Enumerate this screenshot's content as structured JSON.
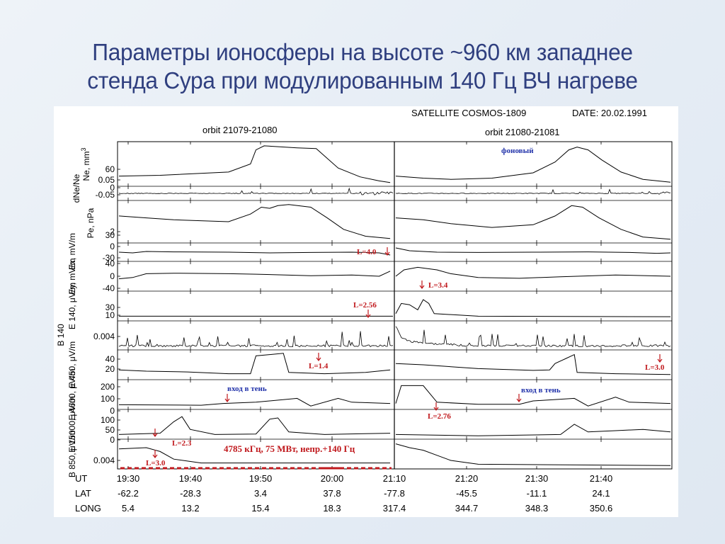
{
  "slide": {
    "title_line1": "Параметры ионосферы на высоте ~960 км западнее",
    "title_line2": "стенда Сура при модулированным 140 Гц ВЧ нагреве"
  },
  "chart_data": {
    "type": "line",
    "header": {
      "satellite": "SATELLITE  COSMOS-1809",
      "date": "DATE: 20.02.1991",
      "orbit1": "orbit  21079-21080",
      "orbit2": "orbit  21080-21081"
    },
    "panels": [
      {
        "label": "Ne, mm",
        "label_sup": "3",
        "ticks": [
          "60"
        ],
        "series": "Ne",
        "left": [
          [
            0,
            0.2
          ],
          [
            0.15,
            0.22
          ],
          [
            0.4,
            0.3
          ],
          [
            0.48,
            0.5
          ],
          [
            0.5,
            0.85
          ],
          [
            0.53,
            0.95
          ],
          [
            0.65,
            0.9
          ],
          [
            0.72,
            0.88
          ],
          [
            0.75,
            0.7
          ],
          [
            0.8,
            0.4
          ],
          [
            0.88,
            0.18
          ],
          [
            0.95,
            0.08
          ],
          [
            0.99,
            0.04
          ]
        ],
        "right": [
          [
            0,
            0.2
          ],
          [
            0.1,
            0.15
          ],
          [
            0.2,
            0.12
          ],
          [
            0.35,
            0.15
          ],
          [
            0.5,
            0.28
          ],
          [
            0.58,
            0.55
          ],
          [
            0.63,
            0.85
          ],
          [
            0.66,
            0.92
          ],
          [
            0.7,
            0.85
          ],
          [
            0.75,
            0.6
          ],
          [
            0.82,
            0.3
          ],
          [
            0.9,
            0.12
          ],
          [
            1,
            0.05
          ]
        ]
      },
      {
        "label": "dNe/Ne",
        "ticks": [
          "0.05",
          "0",
          "-0.05"
        ],
        "series": "noise",
        "left": [
          [
            0,
            0.5
          ],
          [
            1,
            0.5
          ]
        ],
        "right": [
          [
            0,
            0.5
          ],
          [
            1,
            0.5
          ]
        ]
      },
      {
        "label": "Pe, nPa",
        "ticks": [
          "2"
        ],
        "series": "Pe",
        "left": [
          [
            0,
            0.65
          ],
          [
            0.1,
            0.6
          ],
          [
            0.2,
            0.55
          ],
          [
            0.4,
            0.5
          ],
          [
            0.48,
            0.7
          ],
          [
            0.52,
            0.88
          ],
          [
            0.55,
            0.85
          ],
          [
            0.58,
            0.92
          ],
          [
            0.62,
            0.95
          ],
          [
            0.7,
            0.88
          ],
          [
            0.76,
            0.6
          ],
          [
            0.82,
            0.3
          ],
          [
            0.9,
            0.12
          ],
          [
            0.99,
            0.06
          ]
        ],
        "right": [
          [
            0,
            0.6
          ],
          [
            0.1,
            0.55
          ],
          [
            0.2,
            0.45
          ],
          [
            0.35,
            0.35
          ],
          [
            0.5,
            0.42
          ],
          [
            0.58,
            0.65
          ],
          [
            0.64,
            0.92
          ],
          [
            0.68,
            0.88
          ],
          [
            0.74,
            0.6
          ],
          [
            0.82,
            0.3
          ],
          [
            0.9,
            0.1
          ],
          [
            1,
            0.04
          ]
        ]
      },
      {
        "label": "Ex, mV/m",
        "ticks": [
          "30",
          "0",
          "-30"
        ],
        "series": "Ex",
        "left": [
          [
            0,
            0.5
          ],
          [
            0.05,
            0.45
          ],
          [
            0.1,
            0.55
          ],
          [
            0.2,
            0.52
          ],
          [
            0.4,
            0.5
          ],
          [
            0.55,
            0.45
          ],
          [
            0.7,
            0.48
          ],
          [
            0.85,
            0.5
          ],
          [
            0.95,
            0.45
          ],
          [
            0.99,
            0.3
          ]
        ],
        "right": [
          [
            0,
            0.8
          ],
          [
            0.05,
            0.6
          ],
          [
            0.15,
            0.5
          ],
          [
            0.3,
            0.48
          ],
          [
            0.5,
            0.5
          ],
          [
            0.7,
            0.52
          ],
          [
            0.85,
            0.48
          ],
          [
            0.95,
            0.42
          ],
          [
            1,
            0.45
          ]
        ]
      },
      {
        "label": "Ey, mV/m",
        "ticks": [
          "40",
          "0",
          "-40"
        ],
        "series": "Ey",
        "left": [
          [
            0,
            0.4
          ],
          [
            0.05,
            0.45
          ],
          [
            0.1,
            0.6
          ],
          [
            0.2,
            0.62
          ],
          [
            0.4,
            0.6
          ],
          [
            0.5,
            0.58
          ],
          [
            0.7,
            0.52
          ],
          [
            0.85,
            0.55
          ],
          [
            0.95,
            0.5
          ],
          [
            0.99,
            0.7
          ]
        ],
        "right": [
          [
            0,
            0.5
          ],
          [
            0.03,
            0.75
          ],
          [
            0.08,
            0.85
          ],
          [
            0.15,
            0.75
          ],
          [
            0.2,
            0.6
          ],
          [
            0.3,
            0.45
          ],
          [
            0.45,
            0.42
          ],
          [
            0.6,
            0.48
          ],
          [
            0.8,
            0.55
          ],
          [
            1,
            0.5
          ]
        ]
      },
      {
        "label": "E 140, μV/m",
        "ticks": [
          "30",
          "10"
        ],
        "series": "E140",
        "left": [
          [
            0,
            0.1
          ],
          [
            1,
            0.1
          ]
        ],
        "right": [
          [
            0,
            0.2
          ],
          [
            0.02,
            0.6
          ],
          [
            0.05,
            0.55
          ],
          [
            0.08,
            0.35
          ],
          [
            0.1,
            0.75
          ],
          [
            0.12,
            0.6
          ],
          [
            0.14,
            0.2
          ],
          [
            0.3,
            0.1
          ],
          [
            1,
            0.08
          ]
        ]
      },
      {
        "label": "B 140",
        "ticks": [
          "0.004"
        ],
        "series": "B140",
        "left": [
          [
            0,
            0.08
          ],
          [
            1,
            0.08
          ]
        ],
        "right": [
          [
            0,
            0.9
          ],
          [
            0.02,
            0.4
          ],
          [
            0.05,
            0.25
          ],
          [
            0.15,
            0.15
          ],
          [
            0.3,
            0.08
          ],
          [
            1,
            0.08
          ]
        ]
      },
      {
        "label": "E 450, μV/m",
        "ticks": [
          "40",
          "20"
        ],
        "series": "E450",
        "left": [
          [
            0,
            0.3
          ],
          [
            0.1,
            0.25
          ],
          [
            0.25,
            0.22
          ],
          [
            0.4,
            0.15
          ],
          [
            0.48,
            0.15
          ],
          [
            0.5,
            0.85
          ],
          [
            0.6,
            0.95
          ],
          [
            0.62,
            0.2
          ],
          [
            0.75,
            0.15
          ],
          [
            0.9,
            0.2
          ],
          [
            0.99,
            0.3
          ]
        ],
        "right": [
          [
            0,
            0.55
          ],
          [
            0.1,
            0.5
          ],
          [
            0.3,
            0.35
          ],
          [
            0.5,
            0.28
          ],
          [
            0.56,
            0.3
          ],
          [
            0.58,
            0.55
          ],
          [
            0.62,
            0.75
          ],
          [
            0.65,
            0.9
          ],
          [
            0.66,
            0.2
          ],
          [
            0.8,
            0.15
          ],
          [
            1,
            0.12
          ]
        ]
      },
      {
        "label": "E 4600, μV/m",
        "ticks": [
          "200",
          "100",
          "0"
        ],
        "series": "E4600",
        "left": [
          [
            0,
            0.1
          ],
          [
            0.3,
            0.08
          ],
          [
            0.38,
            0.15
          ],
          [
            0.5,
            0.2
          ],
          [
            0.65,
            0.35
          ],
          [
            0.7,
            0.05
          ],
          [
            0.8,
            0.35
          ],
          [
            0.85,
            0.2
          ],
          [
            0.99,
            0.15
          ]
        ],
        "right": [
          [
            0,
            0.15
          ],
          [
            0.02,
            0.85
          ],
          [
            0.1,
            0.85
          ],
          [
            0.15,
            0.2
          ],
          [
            0.3,
            0.12
          ],
          [
            0.45,
            0.12
          ],
          [
            0.5,
            0.25
          ],
          [
            0.65,
            0.35
          ],
          [
            0.7,
            0.05
          ],
          [
            0.8,
            0.4
          ],
          [
            0.85,
            0.2
          ],
          [
            1,
            0.15
          ]
        ]
      },
      {
        "label": "E 15000, μV/m",
        "ticks": [
          "100",
          "50",
          "0"
        ],
        "series": "E15000",
        "left": [
          [
            0,
            0.1
          ],
          [
            0.15,
            0.15
          ],
          [
            0.2,
            0.6
          ],
          [
            0.23,
            0.8
          ],
          [
            0.26,
            0.3
          ],
          [
            0.35,
            0.1
          ],
          [
            0.5,
            0.12
          ],
          [
            0.55,
            0.7
          ],
          [
            0.58,
            0.75
          ],
          [
            0.62,
            0.2
          ],
          [
            0.75,
            0.1
          ],
          [
            0.99,
            0.15
          ]
        ],
        "right": [
          [
            0,
            0.1
          ],
          [
            0.3,
            0.05
          ],
          [
            0.6,
            0.1
          ],
          [
            0.65,
            0.5
          ],
          [
            0.7,
            0.2
          ],
          [
            0.8,
            0.25
          ],
          [
            0.9,
            0.3
          ],
          [
            1,
            0.2
          ]
        ]
      },
      {
        "label": "B 850, μV/m",
        "ticks": [
          "0.004"
        ],
        "series": "B850",
        "left": [
          [
            0,
            0.7
          ],
          [
            0.1,
            0.75
          ],
          [
            0.15,
            0.6
          ],
          [
            0.2,
            0.3
          ],
          [
            0.3,
            0.15
          ],
          [
            0.99,
            0.15
          ]
        ],
        "right": [
          [
            0,
            0.9
          ],
          [
            0.05,
            0.75
          ],
          [
            0.1,
            0.65
          ],
          [
            0.15,
            0.45
          ],
          [
            0.2,
            0.25
          ],
          [
            0.3,
            0.1
          ],
          [
            1,
            0.05
          ]
        ]
      }
    ],
    "annotations": {
      "background": "фоновый",
      "l40": "L=4.0",
      "l34": "L=3.4",
      "l256": "L=2.56",
      "l14": "L=1.4",
      "l30a": "L=3.0",
      "shadow1": "вход в тень",
      "shadow2": "вход в тень",
      "l276": "L=2.76",
      "l23": "L=2.3",
      "l30b": "L=3.0",
      "heating": "4785 кГц, 75 МВт, непр.+140 Гц"
    },
    "x_axis": {
      "rows": [
        {
          "name": "UT",
          "values": [
            "19:30",
            "19:40",
            "19:50",
            "20:00",
            "21:10",
            "21:20",
            "21:30",
            "21:40"
          ]
        },
        {
          "name": "LAT",
          "values": [
            "-62.2",
            "-28.3",
            "3.4",
            "37.8",
            "-77.8",
            "-45.5",
            "-11.1",
            "24.1"
          ]
        },
        {
          "name": "LONG",
          "values": [
            "5.4",
            "13.2",
            "15.4",
            "18.3",
            "317.4",
            "344.7",
            "348.3",
            "350.6"
          ]
        }
      ]
    }
  }
}
